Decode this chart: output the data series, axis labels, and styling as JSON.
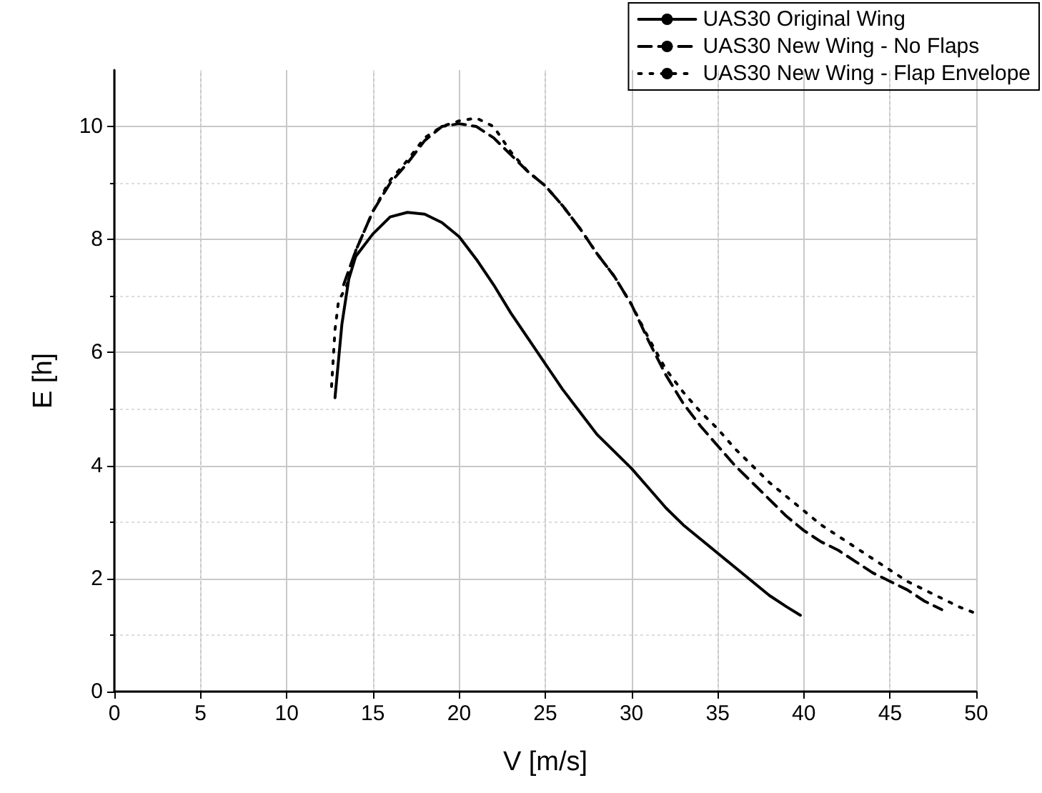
{
  "chart_data": {
    "type": "line",
    "xlabel": "V [m/s]",
    "ylabel": "E [h]",
    "xlim": [
      0,
      50
    ],
    "xticks": [
      0,
      5,
      10,
      15,
      20,
      25,
      30,
      35,
      40,
      45,
      50
    ],
    "ylim": [
      0,
      11
    ],
    "yticks": [
      0,
      2,
      4,
      6,
      8,
      10
    ],
    "grid": true,
    "legend": "top right",
    "marker": "none",
    "series": [
      {
        "name": "UAS30 Original Wing",
        "color": "#000000",
        "line_style": "solid",
        "x": [
          12.8,
          13.2,
          13.6,
          14,
          15,
          16,
          17,
          18,
          19,
          20,
          21,
          22,
          23,
          24,
          25,
          26,
          27,
          28,
          29,
          30,
          31,
          32,
          33,
          34,
          35,
          36,
          37,
          38,
          39,
          39.8
        ],
        "values": [
          5.2,
          6.5,
          7.3,
          7.7,
          8.1,
          8.4,
          8.48,
          8.45,
          8.3,
          8.05,
          7.65,
          7.2,
          6.7,
          6.25,
          5.8,
          5.35,
          4.95,
          4.55,
          4.25,
          3.95,
          3.6,
          3.25,
          2.95,
          2.7,
          2.45,
          2.2,
          1.95,
          1.7,
          1.5,
          1.35
        ]
      },
      {
        "name": "UAS30 New Wing - No Flaps",
        "color": "#000000",
        "line_style": "dashed",
        "x": [
          13.3,
          14,
          15,
          16,
          17,
          18,
          19,
          20,
          21,
          22,
          23,
          24,
          25,
          26,
          27,
          28,
          29,
          30,
          31,
          32,
          33,
          34,
          35,
          36,
          37,
          38,
          39,
          40,
          41,
          42,
          43,
          44,
          45,
          46,
          47,
          48
        ],
        "values": [
          7.2,
          7.8,
          8.5,
          9.0,
          9.35,
          9.75,
          10.0,
          10.05,
          10.0,
          9.8,
          9.5,
          9.2,
          8.95,
          8.6,
          8.2,
          7.75,
          7.35,
          6.85,
          6.2,
          5.6,
          5.1,
          4.7,
          4.35,
          4.0,
          3.7,
          3.4,
          3.1,
          2.85,
          2.65,
          2.5,
          2.3,
          2.1,
          1.95,
          1.8,
          1.6,
          1.45
        ]
      },
      {
        "name": "UAS30 New Wing - Flap Envelope",
        "color": "#000000",
        "line_style": "dotted",
        "x": [
          12.6,
          12.8,
          13,
          13.5,
          14,
          15,
          16,
          17,
          18,
          19,
          20,
          21,
          22,
          23,
          24,
          25,
          26,
          27,
          28,
          29,
          30,
          31,
          32,
          33,
          34,
          35,
          36,
          37,
          38,
          39,
          40,
          41,
          42,
          43,
          44,
          45,
          46,
          47,
          48,
          49,
          50
        ],
        "values": [
          5.4,
          6.4,
          6.9,
          7.2,
          7.8,
          8.5,
          9.05,
          9.4,
          9.8,
          10.0,
          10.1,
          10.15,
          10.0,
          9.55,
          9.2,
          8.95,
          8.6,
          8.2,
          7.75,
          7.35,
          6.85,
          6.25,
          5.7,
          5.3,
          4.95,
          4.65,
          4.3,
          4.0,
          3.7,
          3.45,
          3.2,
          2.95,
          2.75,
          2.55,
          2.35,
          2.15,
          1.95,
          1.8,
          1.65,
          1.5,
          1.38
        ]
      }
    ]
  }
}
